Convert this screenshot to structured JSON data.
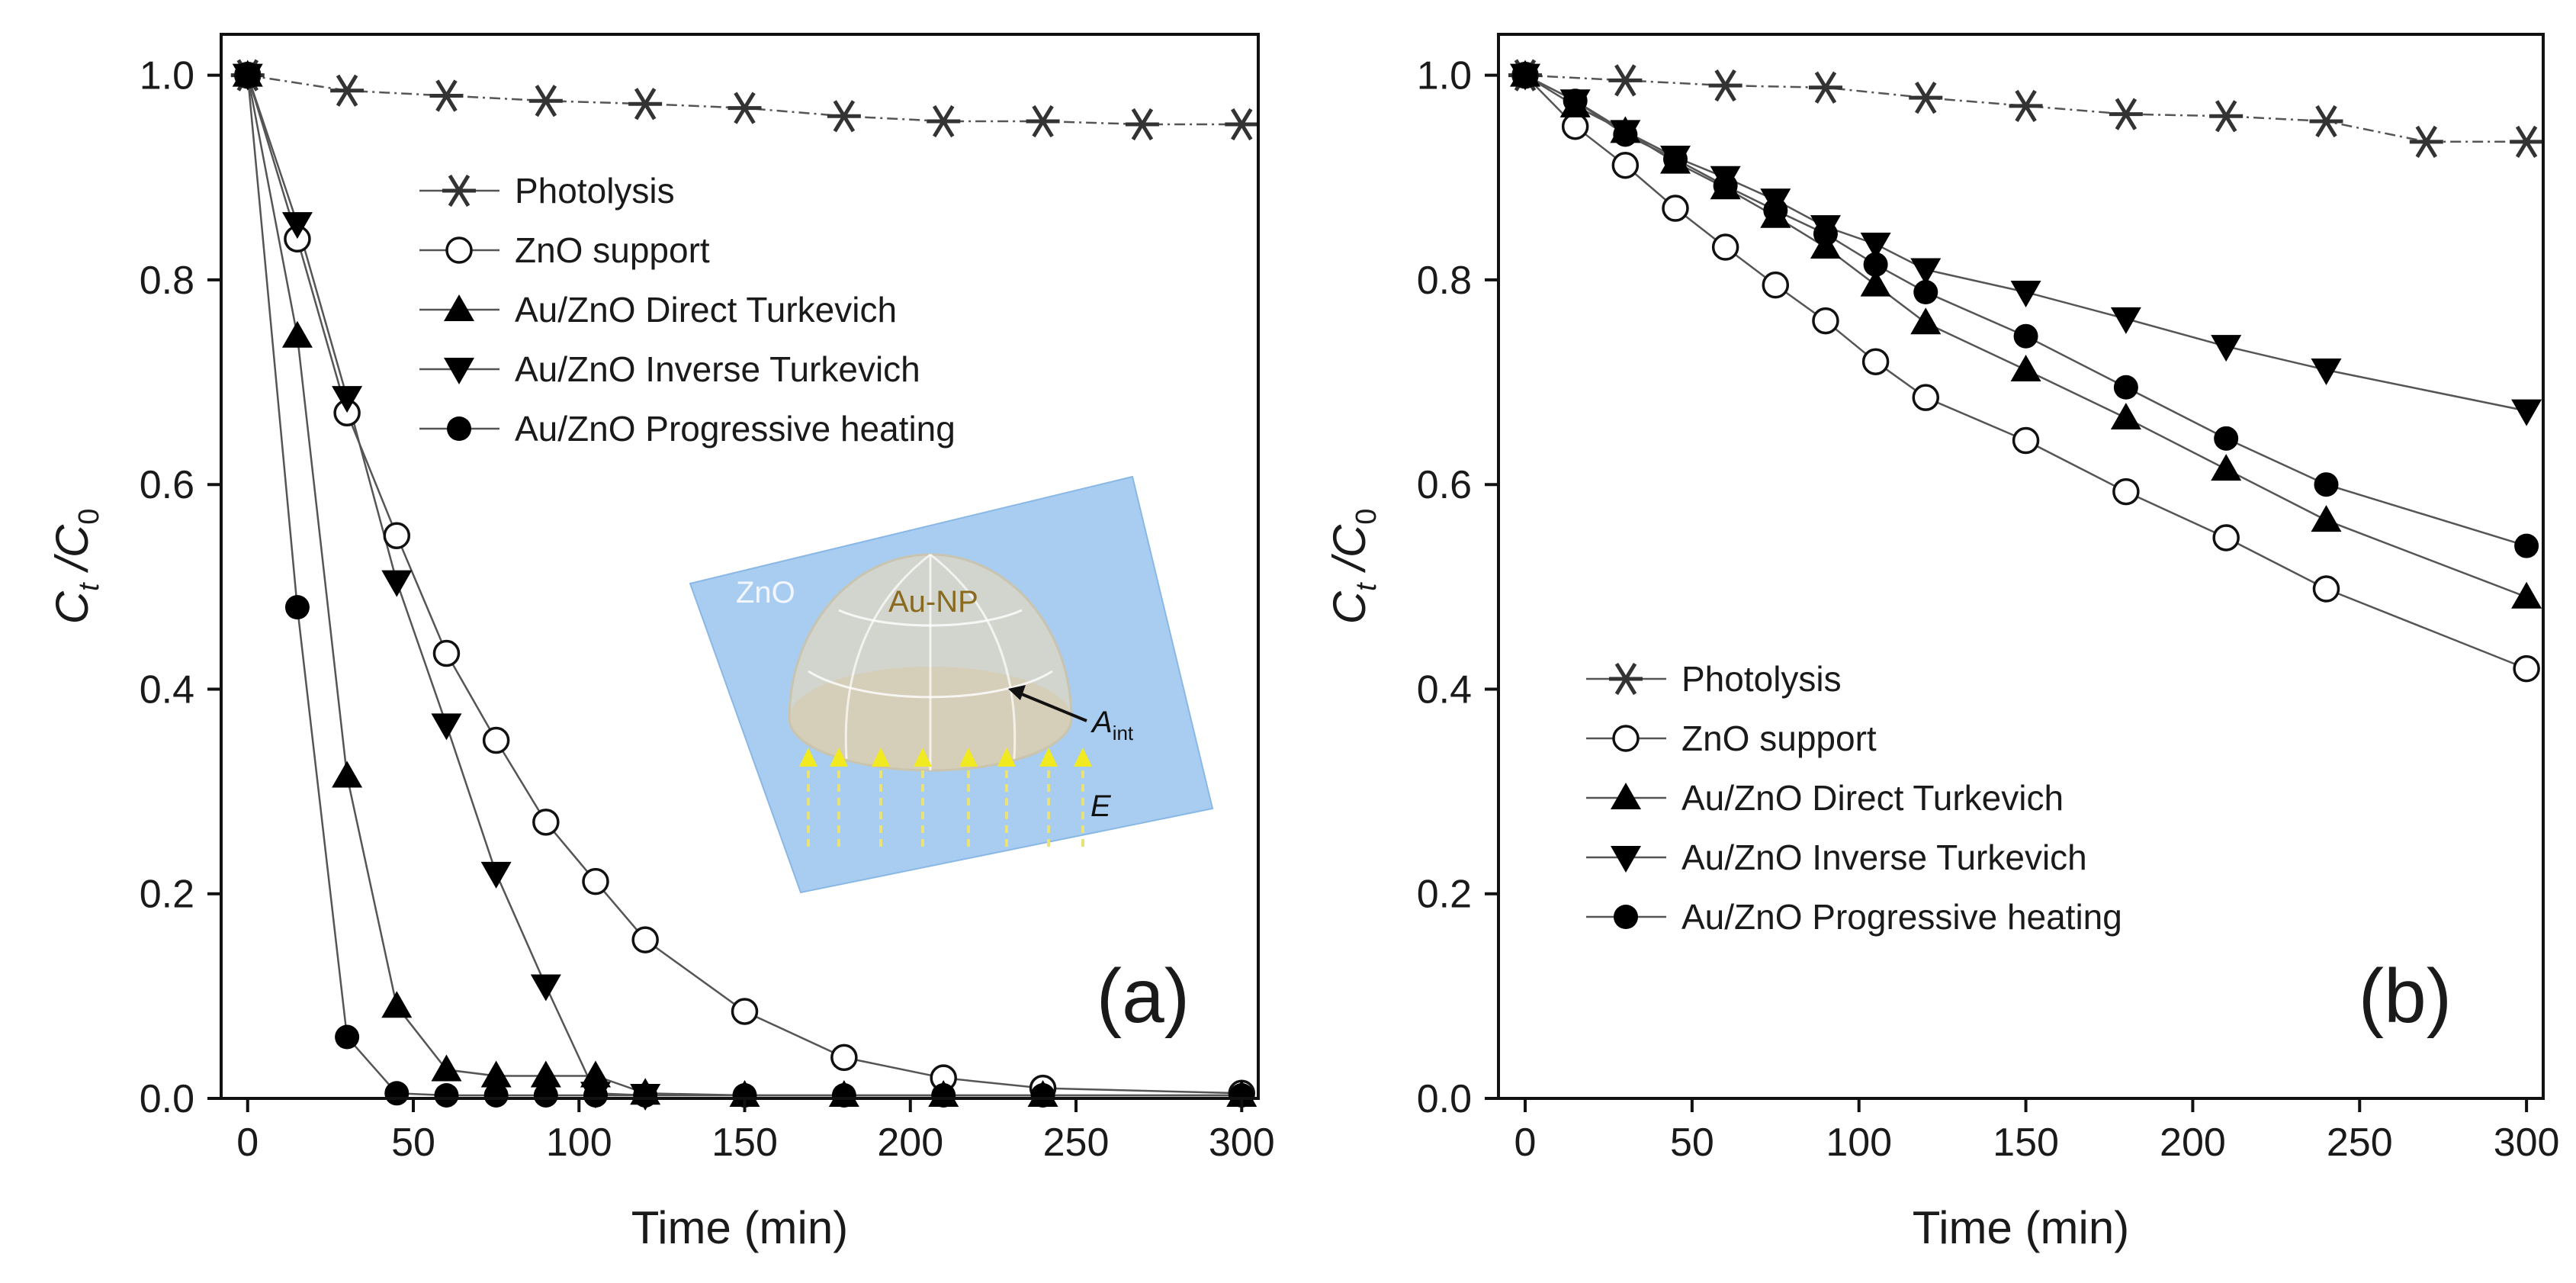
{
  "chart_data": [
    {
      "type": "line",
      "panel": "(a)",
      "xlabel": "Time (min)",
      "ylabel_main": "C",
      "ylabel_sub1": "t",
      "ylabel_sep": " /C",
      "ylabel_sub2": "0",
      "xlim": [
        -8,
        305
      ],
      "ylim": [
        0,
        1.04
      ],
      "xticks": [
        0,
        50,
        100,
        150,
        200,
        250,
        300
      ],
      "yticks": [
        0.0,
        0.2,
        0.4,
        0.6,
        0.8,
        1.0
      ],
      "xtick_labels": [
        "0",
        "50",
        "100",
        "150",
        "200",
        "250",
        "300"
      ],
      "ytick_labels": [
        "0.0",
        "0.2",
        "0.4",
        "0.6",
        "0.8",
        "1.0"
      ],
      "legend_position": "top-center",
      "series": [
        {
          "name": "Photolysis",
          "marker": "asterisk",
          "x": [
            0,
            30,
            60,
            90,
            120,
            150,
            180,
            210,
            240,
            270,
            300
          ],
          "y": [
            1.0,
            0.985,
            0.98,
            0.975,
            0.972,
            0.968,
            0.96,
            0.955,
            0.955,
            0.952,
            0.952
          ]
        },
        {
          "name": "ZnO support",
          "marker": "open-circle",
          "x": [
            0,
            15,
            30,
            45,
            60,
            75,
            90,
            105,
            120,
            150,
            180,
            210,
            240,
            300
          ],
          "y": [
            1.0,
            0.84,
            0.67,
            0.55,
            0.435,
            0.35,
            0.27,
            0.212,
            0.155,
            0.085,
            0.04,
            0.02,
            0.01,
            0.005
          ]
        },
        {
          "name": "Au/ZnO Direct Turkevich",
          "marker": "filled-triangle-up",
          "x": [
            0,
            15,
            30,
            45,
            60,
            75,
            90,
            105,
            120,
            150,
            180,
            210,
            240,
            300
          ],
          "y": [
            1.0,
            0.745,
            0.315,
            0.09,
            0.028,
            0.022,
            0.022,
            0.022,
            0.005,
            0.003,
            0.003,
            0.003,
            0.003,
            0.003
          ]
        },
        {
          "name": "Au/ZnO Inverse Turkevich",
          "marker": "filled-triangle-down",
          "x": [
            0,
            15,
            30,
            45,
            60,
            75,
            90,
            105,
            120
          ],
          "y": [
            1.0,
            0.855,
            0.685,
            0.505,
            0.365,
            0.22,
            0.11,
            0.005,
            0.003
          ]
        },
        {
          "name": "Au/ZnO Progressive heating",
          "marker": "filled-circle",
          "x": [
            0,
            15,
            30,
            45,
            60,
            75,
            90,
            105,
            120,
            150,
            180,
            210,
            240,
            300
          ],
          "y": [
            1.0,
            0.48,
            0.06,
            0.005,
            0.003,
            0.003,
            0.003,
            0.003,
            0.003,
            0.003,
            0.003,
            0.003,
            0.003,
            0.003
          ]
        }
      ],
      "inset": {
        "substrate_label": "ZnO",
        "particle_label": "Au-NP",
        "area_label_main": "A",
        "area_label_sub": "int",
        "field_label": "E"
      }
    },
    {
      "type": "line",
      "panel": "(b)",
      "xlabel": "Time (min)",
      "ylabel_main": "C",
      "ylabel_sub1": "t",
      "ylabel_sep": " /C",
      "ylabel_sub2": "0",
      "xlim": [
        -8,
        305
      ],
      "ylim": [
        0,
        1.04
      ],
      "xticks": [
        0,
        50,
        100,
        150,
        200,
        250,
        300
      ],
      "yticks": [
        0.0,
        0.2,
        0.4,
        0.6,
        0.8,
        1.0
      ],
      "xtick_labels": [
        "0",
        "50",
        "100",
        "150",
        "200",
        "250",
        "300"
      ],
      "ytick_labels": [
        "0.0",
        "0.2",
        "0.4",
        "0.6",
        "0.8",
        "1.0"
      ],
      "legend_position": "bottom-left",
      "series": [
        {
          "name": "Photolysis",
          "marker": "asterisk",
          "x": [
            0,
            30,
            60,
            90,
            120,
            150,
            180,
            210,
            240,
            270,
            300
          ],
          "y": [
            1.0,
            0.995,
            0.99,
            0.988,
            0.978,
            0.97,
            0.962,
            0.96,
            0.955,
            0.935,
            0.935
          ]
        },
        {
          "name": "ZnO support",
          "marker": "open-circle",
          "x": [
            0,
            15,
            30,
            45,
            60,
            75,
            90,
            105,
            120,
            150,
            180,
            210,
            240,
            300
          ],
          "y": [
            1.0,
            0.95,
            0.912,
            0.87,
            0.832,
            0.795,
            0.76,
            0.72,
            0.685,
            0.643,
            0.593,
            0.548,
            0.498,
            0.42
          ]
        },
        {
          "name": "Au/ZnO Direct Turkevich",
          "marker": "filled-triangle-up",
          "x": [
            0,
            15,
            30,
            45,
            60,
            75,
            90,
            105,
            120,
            150,
            180,
            210,
            240,
            300
          ],
          "y": [
            1.0,
            0.97,
            0.945,
            0.915,
            0.89,
            0.862,
            0.832,
            0.795,
            0.758,
            0.712,
            0.665,
            0.615,
            0.565,
            0.49
          ]
        },
        {
          "name": "Au/ZnO Inverse Turkevich",
          "marker": "filled-triangle-down",
          "x": [
            0,
            15,
            30,
            45,
            60,
            75,
            90,
            105,
            120,
            150,
            180,
            210,
            240,
            300
          ],
          "y": [
            1.0,
            0.975,
            0.945,
            0.92,
            0.9,
            0.878,
            0.852,
            0.835,
            0.81,
            0.788,
            0.762,
            0.735,
            0.712,
            0.672
          ]
        },
        {
          "name": "Au/ZnO Progressive heating",
          "marker": "filled-circle",
          "x": [
            0,
            15,
            30,
            45,
            60,
            75,
            90,
            105,
            120,
            150,
            180,
            210,
            240,
            300
          ],
          "y": [
            1.0,
            0.975,
            0.942,
            0.918,
            0.892,
            0.868,
            0.845,
            0.815,
            0.788,
            0.745,
            0.695,
            0.645,
            0.6,
            0.54
          ]
        }
      ]
    }
  ]
}
